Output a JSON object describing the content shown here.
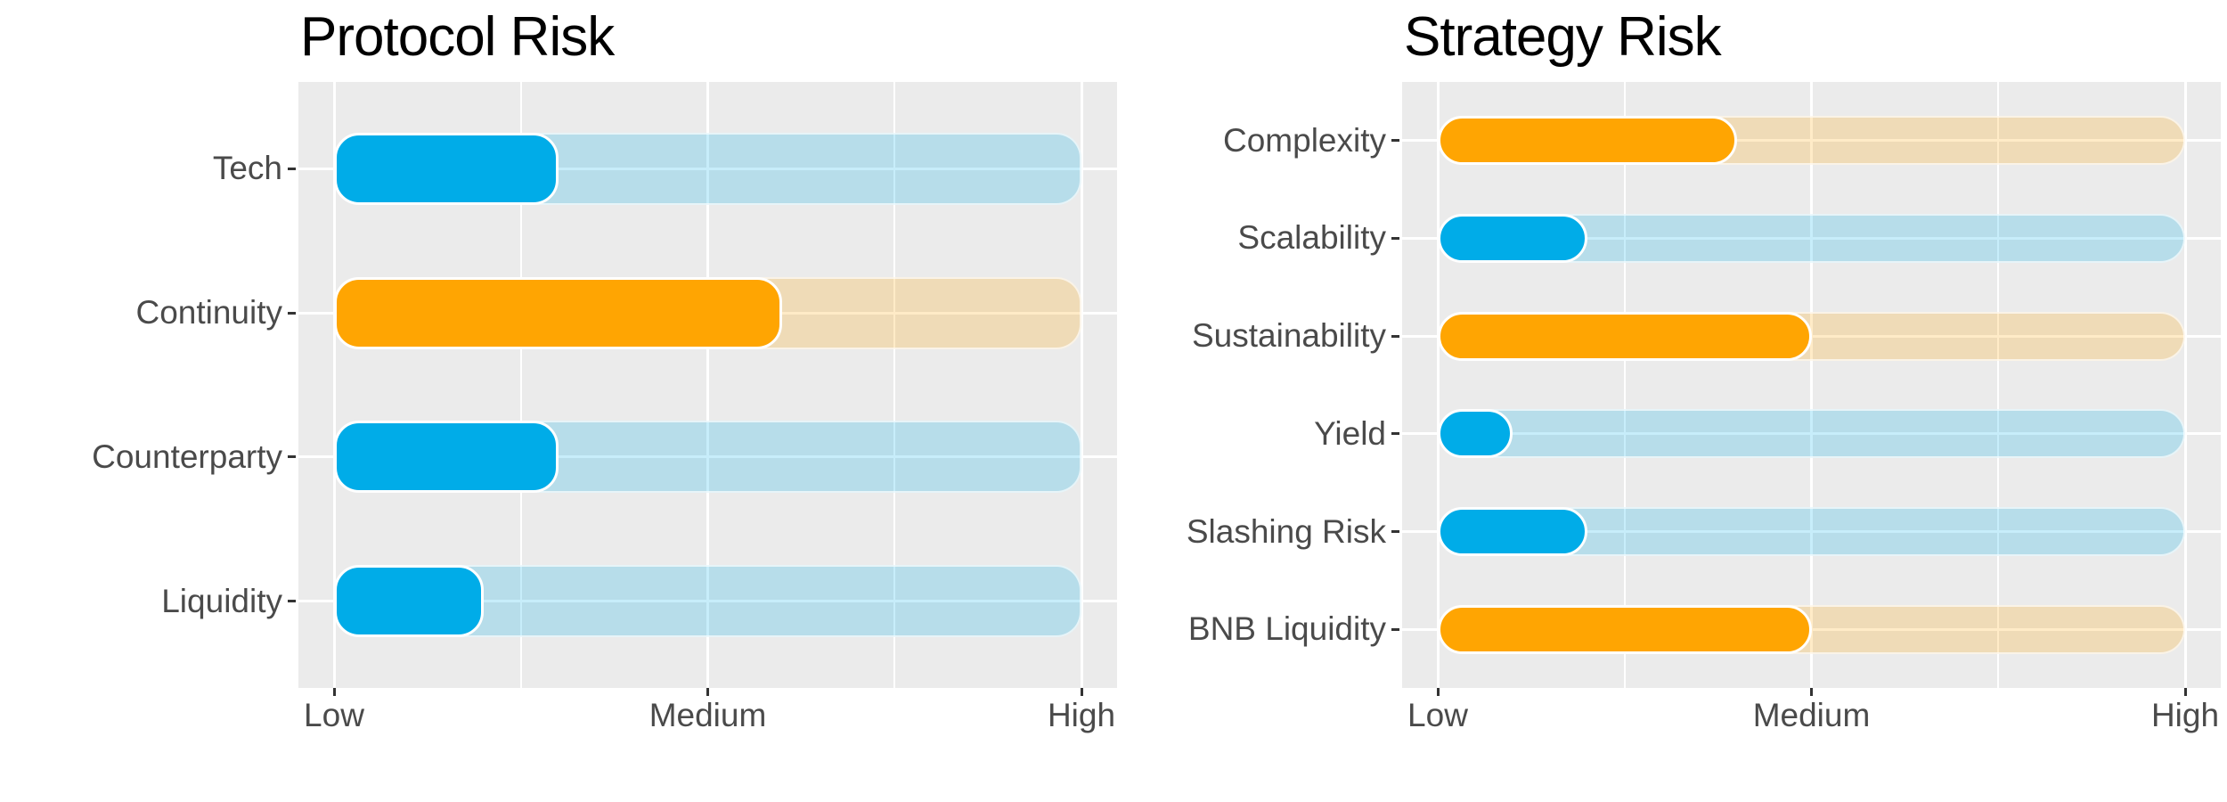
{
  "figure": {
    "background": "#ffffff",
    "panel_background": "#EBEBEB",
    "gridline_color": "#FFFFFF",
    "tick_color": "#333333",
    "label_color": "#4A4A4A",
    "title_color": "#000000"
  },
  "palette": {
    "blue": {
      "bar": "#00ACE8",
      "track": "rgba(0,172,232,0.22)"
    },
    "orange": {
      "bar": "#FFA502",
      "track": "rgba(255,165,2,0.22)"
    }
  },
  "chart_data": [
    {
      "type": "bar",
      "title": "Protocol Risk",
      "categories": [
        "Tech",
        "Continuity",
        "Counterparty",
        "Liquidity"
      ],
      "values": [
        1.6,
        2.2,
        1.6,
        1.4
      ],
      "bar_colors": [
        "blue",
        "orange",
        "blue",
        "blue"
      ],
      "track_max": 3,
      "xlim": [
        1,
        3
      ],
      "x_tick_labels": [
        "Low",
        "Medium",
        "High"
      ],
      "xlabel": "",
      "ylabel": "",
      "grid": "on",
      "legend": "none"
    },
    {
      "type": "bar",
      "title": "Strategy Risk",
      "categories": [
        "Complexity",
        "Scalability",
        "Sustainability",
        "Yield",
        "Slashing Risk",
        "BNB Liquidity"
      ],
      "values": [
        1.8,
        1.4,
        2.0,
        1.2,
        1.4,
        2.0
      ],
      "bar_colors": [
        "orange",
        "blue",
        "orange",
        "blue",
        "blue",
        "orange"
      ],
      "track_max": 3,
      "xlim": [
        1,
        3
      ],
      "x_tick_labels": [
        "Low",
        "Medium",
        "High"
      ],
      "xlabel": "",
      "ylabel": "",
      "grid": "on",
      "legend": "none"
    }
  ]
}
